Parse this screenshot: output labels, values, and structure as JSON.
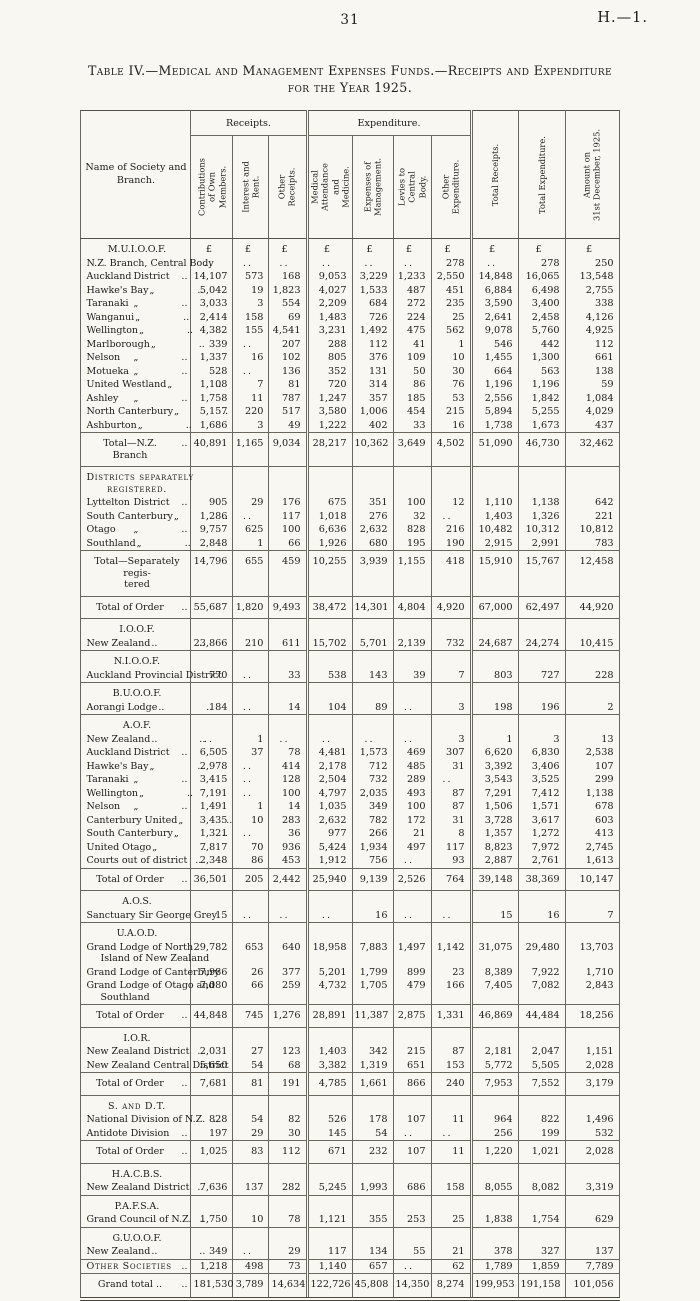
{
  "page": {
    "number": "31",
    "code": "H.—1."
  },
  "title": {
    "line1": "Table IV.—Medical and Management Expenses Funds.—Receipts and Expenditure",
    "line2": "for the Year 1925."
  },
  "table": {
    "name_header": "Name of Society and\nBranch.",
    "groups": {
      "receipts": "Receipts.",
      "expenditure": "Expenditure."
    },
    "columns": [
      "Contributions\nof Own\nMembers.",
      "Interest and\nRent.",
      "Other\nReceipts.",
      "Medical\nAttendance\nand\nMedicine.",
      "Expenses of\nManagement.",
      "Levies to\nCentral\nBody.",
      "Other\nExpenditure.",
      "Total Receipts.",
      "Total Expenditure.",
      "Amount on\n31st December, 1925."
    ],
    "currency": "£",
    "rows": [
      {
        "kind": "section",
        "label": "M.U.I.O.O.F.",
        "vals": [
          "£",
          "£",
          "£",
          "£",
          "£",
          "£",
          "£",
          "£",
          "£",
          "£"
        ]
      },
      {
        "kind": "data",
        "label": "N.Z. Branch, Central Body",
        "vals": [
          "..",
          "..",
          "..",
          "..",
          "..",
          "..",
          "278",
          "..",
          "278",
          "250"
        ]
      },
      {
        "kind": "data",
        "label": "Auckland",
        "mid": "District",
        "end": "..",
        "vals": [
          "14,107",
          "573",
          "168",
          "9,053",
          "3,229",
          "1,233",
          "2,550",
          "14,848",
          "16,065",
          "13,548"
        ]
      },
      {
        "kind": "data",
        "label": "Hawke's Bay",
        "mid": "„",
        "end": "..",
        "vals": [
          "5,042",
          "19",
          "1,823",
          "4,027",
          "1,533",
          "487",
          "451",
          "6,884",
          "6,498",
          "2,755"
        ]
      },
      {
        "kind": "data",
        "label": "Taranaki",
        "mid": "„",
        "end": "..",
        "vals": [
          "3,033",
          "3",
          "554",
          "2,209",
          "684",
          "272",
          "235",
          "3,590",
          "3,400",
          "338"
        ]
      },
      {
        "kind": "data",
        "label": "Wanganui",
        "mid": "„",
        "end": "..",
        "vals": [
          "2,414",
          "158",
          "69",
          "1,483",
          "726",
          "224",
          "25",
          "2,641",
          "2,458",
          "4,126"
        ]
      },
      {
        "kind": "data",
        "label": "Wellington",
        "mid": "„",
        "end": "..",
        "vals": [
          "4,382",
          "155",
          "4,541",
          "3,231",
          "1,492",
          "475",
          "562",
          "9,078",
          "5,760",
          "4,925"
        ]
      },
      {
        "kind": "data",
        "label": "Marlborough",
        "mid": "„",
        "end": "..",
        "vals": [
          "339",
          "..",
          "207",
          "288",
          "112",
          "41",
          "1",
          "546",
          "442",
          "112"
        ]
      },
      {
        "kind": "data",
        "label": "Nelson",
        "mid": "„",
        "end": "..",
        "vals": [
          "1,337",
          "16",
          "102",
          "805",
          "376",
          "109",
          "10",
          "1,455",
          "1,300",
          "661"
        ]
      },
      {
        "kind": "data",
        "label": "Motueka",
        "mid": "„",
        "end": "..",
        "vals": [
          "528",
          "..",
          "136",
          "352",
          "131",
          "50",
          "30",
          "664",
          "563",
          "138"
        ]
      },
      {
        "kind": "data",
        "label": "United Westland",
        "mid": "„",
        "end": "..",
        "vals": [
          "1,108",
          "7",
          "81",
          "720",
          "314",
          "86",
          "76",
          "1,196",
          "1,196",
          "59"
        ]
      },
      {
        "kind": "data",
        "label": "Ashley",
        "mid": "„",
        "end": "..",
        "vals": [
          "1,758",
          "11",
          "787",
          "1,247",
          "357",
          "185",
          "53",
          "2,556",
          "1,842",
          "1,084"
        ]
      },
      {
        "kind": "data",
        "label": "North Canterbury",
        "mid": "„",
        "end": "..",
        "vals": [
          "5,157",
          "220",
          "517",
          "3,580",
          "1,006",
          "454",
          "215",
          "5,894",
          "5,255",
          "4,029"
        ]
      },
      {
        "kind": "data",
        "label": "Ashburton",
        "mid": "„",
        "end": "..",
        "vals": [
          "1,686",
          "3",
          "49",
          "1,222",
          "402",
          "33",
          "16",
          "1,738",
          "1,673",
          "437"
        ]
      },
      {
        "kind": "total",
        "label": "Total—N.Z. Branch",
        "end": "..",
        "vals": [
          "40,891",
          "1,165",
          "9,034",
          "28,217",
          "10,362",
          "3,649",
          "4,502",
          "51,090",
          "46,730",
          "32,462"
        ]
      },
      {
        "kind": "section",
        "caps": true,
        "label": "Districts separately",
        "label2": "registered.",
        "vals": [
          "",
          "",
          "",
          "",
          "",
          "",
          "",
          "",
          "",
          ""
        ]
      },
      {
        "kind": "data",
        "label": "Lyttelton",
        "mid": "District",
        "end": "..",
        "vals": [
          "905",
          "29",
          "176",
          "675",
          "351",
          "100",
          "12",
          "1,110",
          "1,138",
          "642"
        ]
      },
      {
        "kind": "data",
        "label": "South Canterbury",
        "mid": "„",
        "end": "..",
        "vals": [
          "1,286",
          "..",
          "117",
          "1,018",
          "276",
          "32",
          "..",
          "1,403",
          "1,326",
          "221"
        ]
      },
      {
        "kind": "data",
        "label": "Otago",
        "mid": "„",
        "end": "..",
        "vals": [
          "9,757",
          "625",
          "100",
          "6,636",
          "2,632",
          "828",
          "216",
          "10,482",
          "10,312",
          "10,812"
        ]
      },
      {
        "kind": "data",
        "label": "Southland",
        "mid": "„",
        "end": "..",
        "vals": [
          "2,848",
          "1",
          "66",
          "1,926",
          "680",
          "195",
          "190",
          "2,915",
          "2,991",
          "783"
        ]
      },
      {
        "kind": "total",
        "label": "Total—Separately regis-",
        "label2": "tered",
        "vals": [
          "14,796",
          "655",
          "459",
          "10,255",
          "3,939",
          "1,155",
          "418",
          "15,910",
          "15,767",
          "12,458"
        ]
      },
      {
        "kind": "total",
        "label": "Total of Order",
        "end": "..",
        "vals": [
          "55,687",
          "1,820",
          "9,493",
          "38,472",
          "14,301",
          "4,804",
          "4,920",
          "67,000",
          "62,497",
          "44,920"
        ]
      },
      {
        "kind": "section",
        "label": "I.O.O.F.",
        "vals": [
          "",
          "",
          "",
          "",
          "",
          "",
          "",
          "",
          "",
          ""
        ]
      },
      {
        "kind": "data",
        "label": "New Zealand",
        "mid": "..",
        "end": "..",
        "vals": [
          "23,866",
          "210",
          "611",
          "15,702",
          "5,701",
          "2,139",
          "732",
          "24,687",
          "24,274",
          "10,415"
        ]
      },
      {
        "kind": "section",
        "rule": true,
        "label": "N.I.O.O.F.",
        "vals": [
          "",
          "",
          "",
          "",
          "",
          "",
          "",
          "",
          "",
          ""
        ]
      },
      {
        "kind": "data",
        "label": "Auckland Provincial District",
        "vals": [
          "770",
          "..",
          "33",
          "538",
          "143",
          "39",
          "7",
          "803",
          "727",
          "228"
        ]
      },
      {
        "kind": "section",
        "rule": true,
        "label": "B.U.O.O.F.",
        "vals": [
          "",
          "",
          "",
          "",
          "",
          "",
          "",
          "",
          "",
          ""
        ]
      },
      {
        "kind": "data",
        "label": "Aorangi Lodge",
        "mid": "..",
        "end": "..",
        "vals": [
          "184",
          "..",
          "14",
          "104",
          "89",
          "..",
          "3",
          "198",
          "196",
          "2"
        ]
      },
      {
        "kind": "section",
        "rule": true,
        "label": "A.O.F.",
        "vals": [
          "",
          "",
          "",
          "",
          "",
          "",
          "",
          "",
          "",
          ""
        ]
      },
      {
        "kind": "data",
        "label": "New Zealand",
        "mid": "..",
        "end": "..",
        "vals": [
          "..",
          "1",
          "..",
          "..",
          "..",
          "..",
          "3",
          "1",
          "3",
          "13"
        ]
      },
      {
        "kind": "data",
        "label": "Auckland",
        "mid": "District",
        "end": "..",
        "vals": [
          "6,505",
          "37",
          "78",
          "4,481",
          "1,573",
          "469",
          "307",
          "6,620",
          "6,830",
          "2,538"
        ]
      },
      {
        "kind": "data",
        "label": "Hawke's Bay",
        "mid": "„",
        "end": "..",
        "vals": [
          "2,978",
          "..",
          "414",
          "2,178",
          "712",
          "485",
          "31",
          "3,392",
          "3,406",
          "107"
        ]
      },
      {
        "kind": "data",
        "label": "Taranaki",
        "mid": "„",
        "end": "..",
        "vals": [
          "3,415",
          "..",
          "128",
          "2,504",
          "732",
          "289",
          "..",
          "3,543",
          "3,525",
          "299"
        ]
      },
      {
        "kind": "data",
        "label": "Wellington",
        "mid": "„",
        "end": "..",
        "vals": [
          "7,191",
          "..",
          "100",
          "4,797",
          "2,035",
          "493",
          "87",
          "7,291",
          "7,412",
          "1,138"
        ]
      },
      {
        "kind": "data",
        "label": "Nelson",
        "mid": "„",
        "end": "..",
        "vals": [
          "1,491",
          "1",
          "14",
          "1,035",
          "349",
          "100",
          "87",
          "1,506",
          "1,571",
          "678"
        ]
      },
      {
        "kind": "data",
        "label": "Canterbury United",
        "mid": "„",
        "end": "..",
        "vals": [
          "3,435",
          "10",
          "283",
          "2,632",
          "782",
          "172",
          "31",
          "3,728",
          "3,617",
          "603"
        ]
      },
      {
        "kind": "data",
        "label": "South Canterbury",
        "mid": "„",
        "end": "..",
        "vals": [
          "1,321",
          "..",
          "36",
          "977",
          "266",
          "21",
          "8",
          "1,357",
          "1,272",
          "413"
        ]
      },
      {
        "kind": "data",
        "label": "United Otago",
        "mid": "„",
        "end": "..",
        "vals": [
          "7,817",
          "70",
          "936",
          "5,424",
          "1,934",
          "497",
          "117",
          "8,823",
          "7,972",
          "2,745"
        ]
      },
      {
        "kind": "data",
        "label": "Courts out of district",
        "end": "..",
        "vals": [
          "2,348",
          "86",
          "453",
          "1,912",
          "756",
          "..",
          "93",
          "2,887",
          "2,761",
          "1,613"
        ]
      },
      {
        "kind": "total",
        "label": "Total of Order",
        "end": "..",
        "vals": [
          "36,501",
          "205",
          "2,442",
          "25,940",
          "9,139",
          "2,526",
          "764",
          "39,148",
          "38,369",
          "10,147"
        ]
      },
      {
        "kind": "section",
        "label": "A.O.S.",
        "vals": [
          "",
          "",
          "",
          "",
          "",
          "",
          "",
          "",
          "",
          ""
        ]
      },
      {
        "kind": "data",
        "label": "Sanctuary Sir George Grey",
        "vals": [
          "15",
          "..",
          "..",
          "..",
          "16",
          "..",
          "..",
          "15",
          "16",
          "7"
        ]
      },
      {
        "kind": "section",
        "rule": true,
        "label": "U.A.O.D.",
        "vals": [
          "",
          "",
          "",
          "",
          "",
          "",
          "",
          "",
          "",
          ""
        ]
      },
      {
        "kind": "data",
        "label": "Grand Lodge of North",
        "label2": "Island of New Zealand",
        "vals": [
          "29,782",
          "653",
          "640",
          "18,958",
          "7,883",
          "1,497",
          "1,142",
          "31,075",
          "29,480",
          "13,703"
        ]
      },
      {
        "kind": "data",
        "label": "Grand Lodge of Canterbury",
        "vals": [
          "7,986",
          "26",
          "377",
          "5,201",
          "1,799",
          "899",
          "23",
          "8,389",
          "7,922",
          "1,710"
        ]
      },
      {
        "kind": "data",
        "label": "Grand Lodge of Otago and",
        "label2": "Southland",
        "vals": [
          "7,080",
          "66",
          "259",
          "4,732",
          "1,705",
          "479",
          "166",
          "7,405",
          "7,082",
          "2,843"
        ]
      },
      {
        "kind": "total",
        "label": "Total of Order",
        "end": "..",
        "vals": [
          "44,848",
          "745",
          "1,276",
          "28,891",
          "11,387",
          "2,875",
          "1,331",
          "46,869",
          "44,484",
          "18,256"
        ]
      },
      {
        "kind": "section",
        "label": "I.O.R.",
        "vals": [
          "",
          "",
          "",
          "",
          "",
          "",
          "",
          "",
          "",
          ""
        ]
      },
      {
        "kind": "data",
        "label": "New Zealand District",
        "end": "..",
        "vals": [
          "2,031",
          "27",
          "123",
          "1,403",
          "342",
          "215",
          "87",
          "2,181",
          "2,047",
          "1,151"
        ]
      },
      {
        "kind": "data",
        "label": "New Zealand Central District",
        "vals": [
          "5,650",
          "54",
          "68",
          "3,382",
          "1,319",
          "651",
          "153",
          "5,772",
          "5,505",
          "2,028"
        ]
      },
      {
        "kind": "total",
        "label": "Total of Order",
        "end": "..",
        "vals": [
          "7,681",
          "81",
          "191",
          "4,785",
          "1,661",
          "866",
          "240",
          "7,953",
          "7,552",
          "3,179"
        ]
      },
      {
        "kind": "section",
        "caps": true,
        "label": "S. and D.T.",
        "vals": [
          "",
          "",
          "",
          "",
          "",
          "",
          "",
          "",
          "",
          ""
        ]
      },
      {
        "kind": "data",
        "label": "National Division of N.Z.",
        "end": "..",
        "vals": [
          "828",
          "54",
          "82",
          "526",
          "178",
          "107",
          "11",
          "964",
          "822",
          "1,496"
        ]
      },
      {
        "kind": "data",
        "label": "Antidote Division",
        "end": "..",
        "vals": [
          "197",
          "29",
          "30",
          "145",
          "54",
          "..",
          "..",
          "256",
          "199",
          "532"
        ]
      },
      {
        "kind": "total",
        "label": "Total of Order",
        "end": "..",
        "vals": [
          "1,025",
          "83",
          "112",
          "671",
          "232",
          "107",
          "11",
          "1,220",
          "1,021",
          "2,028"
        ]
      },
      {
        "kind": "section",
        "label": "H.A.C.B.S.",
        "vals": [
          "",
          "",
          "",
          "",
          "",
          "",
          "",
          "",
          "",
          ""
        ]
      },
      {
        "kind": "data",
        "label": "New Zealand District",
        "end": "..",
        "vals": [
          "7,636",
          "137",
          "282",
          "5,245",
          "1,993",
          "686",
          "158",
          "8,055",
          "8,082",
          "3,319"
        ]
      },
      {
        "kind": "section",
        "rule": true,
        "label": "P.A.F.S.A.",
        "vals": [
          "",
          "",
          "",
          "",
          "",
          "",
          "",
          "",
          "",
          ""
        ]
      },
      {
        "kind": "data",
        "label": "Grand Council of N.Z.",
        "end": "..",
        "vals": [
          "1,750",
          "10",
          "78",
          "1,121",
          "355",
          "253",
          "25",
          "1,838",
          "1,754",
          "629"
        ]
      },
      {
        "kind": "section",
        "rule": true,
        "label": "G.U.O.O.F.",
        "vals": [
          "",
          "",
          "",
          "",
          "",
          "",
          "",
          "",
          "",
          ""
        ]
      },
      {
        "kind": "data",
        "label": "New Zealand",
        "mid": "..",
        "end": "..",
        "vals": [
          "349",
          "..",
          "29",
          "117",
          "134",
          "55",
          "21",
          "378",
          "327",
          "137"
        ]
      },
      {
        "kind": "data",
        "caps": true,
        "rule": true,
        "label": "Other Societies",
        "end": "..",
        "vals": [
          "1,218",
          "498",
          "73",
          "1,140",
          "657",
          "..",
          "62",
          "1,789",
          "1,859",
          "7,789"
        ]
      },
      {
        "kind": "grand",
        "label": "Grand total ..",
        "end": "..",
        "vals": [
          "181,530",
          "3,789",
          "14,634",
          "122,726",
          "45,808",
          "14,350",
          "8,274",
          "199,953",
          "191,158",
          "101,056"
        ]
      }
    ]
  }
}
